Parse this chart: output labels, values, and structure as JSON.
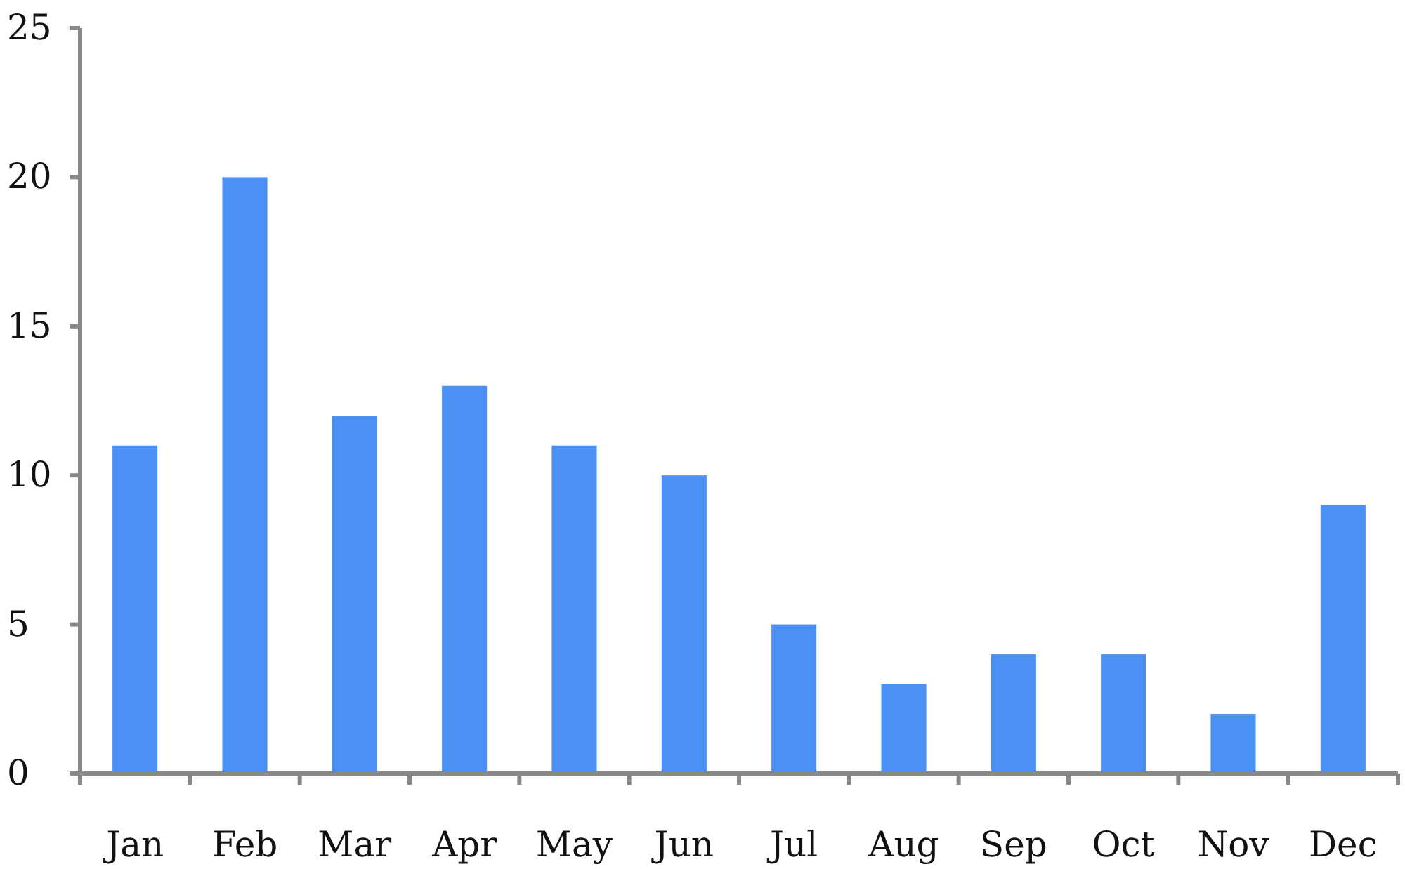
{
  "chart_data": {
    "type": "bar",
    "categories": [
      "Jan",
      "Feb",
      "Mar",
      "Apr",
      "May",
      "Jun",
      "Jul",
      "Aug",
      "Sep",
      "Oct",
      "Nov",
      "Dec"
    ],
    "values": [
      11,
      20,
      12,
      13,
      11,
      10,
      5,
      3,
      4,
      4,
      2,
      9
    ],
    "color": "#4a90f5",
    "ylim": [
      0,
      25
    ],
    "yticks": [
      0,
      5,
      10,
      15,
      20,
      25
    ],
    "grid": false
  }
}
